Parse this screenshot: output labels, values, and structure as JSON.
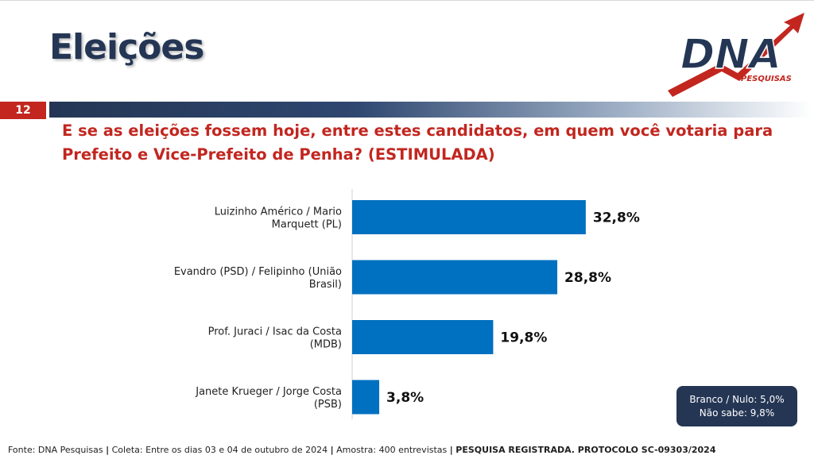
{
  "header": {
    "title": "Eleições",
    "logo_text": "DNA",
    "logo_subtext": "PESQUISAS",
    "slide_number": "12"
  },
  "question": {
    "line1": "E se as eleições fossem hoje, entre estes candidatos, em quem você votaria para",
    "line2": "Prefeito e Vice-Prefeito de Penha? (ESTIMULADA)"
  },
  "chart_data": {
    "type": "bar",
    "orientation": "horizontal",
    "categories": [
      [
        "Luizinho Américo / Mario",
        "Marquett (PL)"
      ],
      [
        "Evandro (PSD) / Felipinho (União",
        "Brasil)"
      ],
      [
        "Prof. Juraci / Isac da Costa",
        "(MDB)"
      ],
      [
        "Janete Krueger / Jorge Costa",
        "(PSB)"
      ]
    ],
    "values": [
      32.8,
      28.8,
      19.8,
      3.8
    ],
    "value_labels": [
      "32,8%",
      "28,8%",
      "19,8%",
      "3,8%"
    ],
    "xlim": [
      0,
      40
    ],
    "bar_color": "#0070c0",
    "grid": false
  },
  "callout": {
    "line1": "Branco / Nulo: 5,0%",
    "line2": "Não sabe: 9,8%"
  },
  "footer": {
    "source": "Fonte: DNA Pesquisas",
    "collection": "Coleta: Entre os dias 03 e 04 de outubro de 2024",
    "sample": "Amostra: 400 entrevistas",
    "registration": "PESQUISA REGISTRADA. PROTOCOLO SC-09303/2024",
    "separator": "|"
  },
  "colors": {
    "navy": "#243654",
    "red": "#c2261f",
    "bar": "#0070c0"
  }
}
